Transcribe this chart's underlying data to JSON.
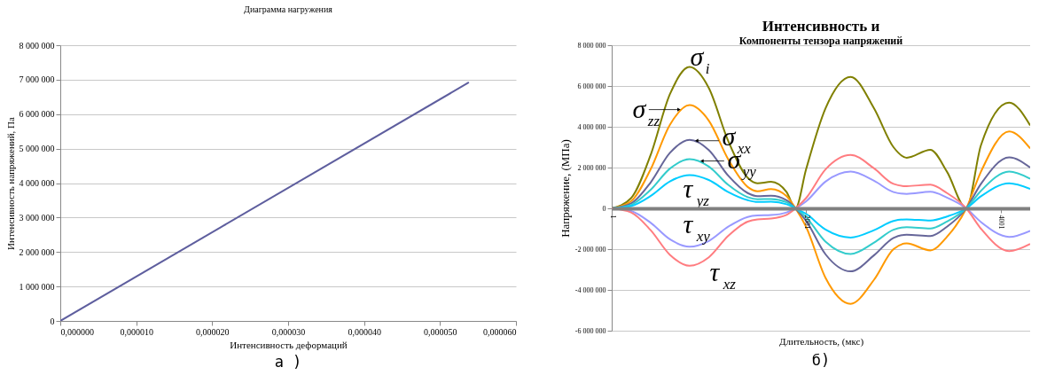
{
  "chart_data": [
    {
      "type": "line",
      "title": "Диаграмма нагружения",
      "xlabel": "Интенсивность деформаций",
      "ylabel": "Интенсивность напряжений,    Пa",
      "x": [
        0,
        5.38e-05
      ],
      "series": [
        {
          "color": "#5e5e9e",
          "values": [
            0,
            6920000
          ]
        }
      ],
      "xlim": [
        0,
        6e-05
      ],
      "ylim": [
        0,
        8000000
      ],
      "xticks": [
        {
          "value": 0,
          "label": "0,000000"
        },
        {
          "value": 1e-05,
          "label": "0,000010"
        },
        {
          "value": 2e-05,
          "label": "0,000020"
        },
        {
          "value": 3e-05,
          "label": "0,000030"
        },
        {
          "value": 4e-05,
          "label": "0,000040"
        },
        {
          "value": 5e-05,
          "label": "0,000050"
        },
        {
          "value": 6e-05,
          "label": "0,000060"
        }
      ],
      "yticks": [
        0,
        {
          "value": 1000000,
          "label": "1 000 000"
        },
        {
          "value": 2000000,
          "label": "2 000 000"
        },
        {
          "value": 3000000,
          "label": "3 000 000"
        },
        {
          "value": 4000000,
          "label": "4 000 000"
        },
        {
          "value": 5000000,
          "label": "5 000 000"
        },
        {
          "value": 6000000,
          "label": "6 000 000"
        },
        {
          "value": 7000000,
          "label": "7 000 000"
        },
        {
          "value": 8000000,
          "label": "8 000 000"
        }
      ],
      "grid": "y",
      "annotations": [
        "а )"
      ]
    },
    {
      "type": "line",
      "title": "Интенсивность и",
      "subtitle": "Компоненты тензора напряжений",
      "xlabel": "Длительность, (мкс)",
      "ylabel": "Напряжение, (МПа)",
      "x": [
        1,
        200,
        400,
        600,
        802,
        1000,
        1200,
        1400,
        1500,
        1640,
        1800,
        1892,
        2000,
        2200,
        2459,
        2700,
        2900,
        3036,
        3279,
        3450,
        3649,
        3800,
        4090,
        4306
      ],
      "series": [
        {
          "name": "σ$_{i}$",
          "color": "#808000",
          "values": [
            0,
            500000,
            2600000,
            5600000,
            6930000,
            5900000,
            3300000,
            1500000,
            1230000,
            1300000,
            800000,
            0,
            1900000,
            4900000,
            6450000,
            4900000,
            3000000,
            2480000,
            2870000,
            1800000,
            0,
            3100000,
            5190000,
            4070000
          ]
        },
        {
          "name": "σ$_{zz}$",
          "color": "#ff9900",
          "values": [
            0,
            350000,
            1900000,
            4100000,
            5060000,
            4300000,
            2400000,
            1050000,
            840000,
            950000,
            600000,
            0,
            -900000,
            -3400000,
            -4680000,
            -3500000,
            -2000000,
            -1720000,
            -2060000,
            -1400000,
            0,
            1800000,
            3770000,
            2940000
          ]
        },
        {
          "name": "σ$_{xx}$",
          "color": "#666699",
          "values": [
            0,
            240000,
            1260000,
            2720000,
            3360000,
            2860000,
            1600000,
            750000,
            600000,
            620000,
            400000,
            0,
            -600000,
            -2250000,
            -3090000,
            -2300000,
            -1450000,
            -1290000,
            -1360000,
            -900000,
            0,
            1200000,
            2500000,
            2000000
          ]
        },
        {
          "name": "σ$_{yy}$",
          "color": "#33cccc",
          "values": [
            0,
            170000,
            900000,
            1950000,
            2410000,
            2050000,
            1150000,
            550000,
            450000,
            460000,
            300000,
            0,
            -430000,
            -1630000,
            -2240000,
            -1680000,
            -1050000,
            -920000,
            -990000,
            -650000,
            0,
            860000,
            1800000,
            1450000
          ]
        },
        {
          "name": "τ$_{yz}$",
          "color": "#00ccff",
          "values": [
            0,
            110000,
            600000,
            1320000,
            1630000,
            1390000,
            800000,
            400000,
            310000,
            330000,
            200000,
            0,
            -270000,
            -1040000,
            -1430000,
            -1070000,
            -620000,
            -540000,
            -600000,
            -400000,
            0,
            590000,
            1230000,
            950000
          ]
        },
        {
          "name": "τ$_{xy}$",
          "color": "#9999ff",
          "values": [
            0,
            -130000,
            -700000,
            -1520000,
            -1880000,
            -1600000,
            -900000,
            -420000,
            -350000,
            -330000,
            -200000,
            0,
            340000,
            1310000,
            1800000,
            1350000,
            800000,
            710000,
            810000,
            530000,
            0,
            -670000,
            -1400000,
            -1100000
          ]
        },
        {
          "name": "τ$_{xz}$",
          "color": "#ff7c80",
          "values": [
            0,
            -200000,
            -1060000,
            -2280000,
            -2820000,
            -2400000,
            -1350000,
            -650000,
            -540000,
            -500000,
            -320000,
            0,
            500000,
            1910000,
            2620000,
            1960000,
            1200000,
            1090000,
            1160000,
            750000,
            0,
            -1000000,
            -2100000,
            -1750000
          ]
        }
      ],
      "xlim": [
        1,
        4306
      ],
      "ylim": [
        -6000000,
        8000000
      ],
      "xticks": [
        1,
        2001,
        4001
      ],
      "yticks": [
        {
          "value": -6000000,
          "label": "-6 000 000"
        },
        {
          "value": -4000000,
          "label": "-4 000 000"
        },
        {
          "value": -2000000,
          "label": "-2 000 000"
        },
        0,
        {
          "value": 2000000,
          "label": "2 000 000"
        },
        {
          "value": 4000000,
          "label": "4 000 000"
        },
        {
          "value": 6000000,
          "label": "6 000 000"
        },
        {
          "value": 8000000,
          "label": "8 000 000"
        }
      ],
      "grid": "y",
      "annotations": [
        "б)"
      ]
    }
  ]
}
